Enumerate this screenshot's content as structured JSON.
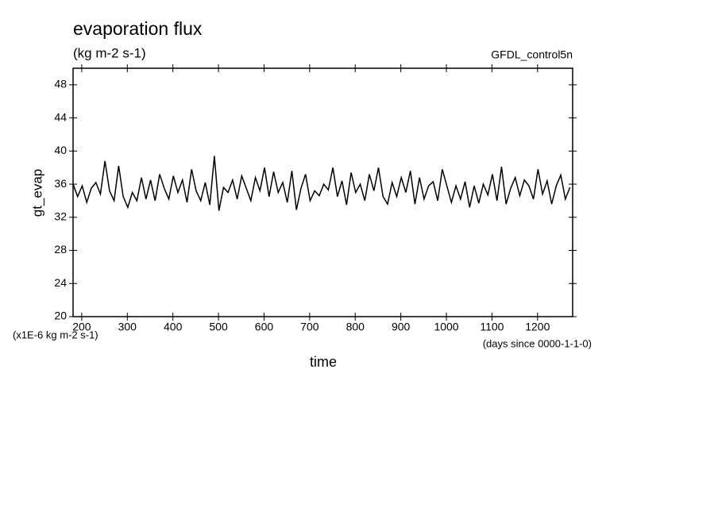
{
  "chart_data": {
    "type": "line",
    "title": "evaporation flux",
    "subtitle": "(kg m-2 s-1)",
    "dataset": "GFDL_control5n",
    "y_label": "gt_evap",
    "x_label": "time",
    "y_units": "(x1E-6 kg m-2 s-1)",
    "x_units": "(days since 0000-1-1-0)",
    "xlim": [
      181,
      1277
    ],
    "ylim": [
      20,
      50
    ],
    "xticks": [
      200,
      300,
      400,
      500,
      600,
      700,
      800,
      900,
      1000,
      1100,
      1200
    ],
    "yticks": [
      20,
      24,
      28,
      32,
      36,
      40,
      44,
      48
    ],
    "x": [
      181,
      191,
      201,
      211,
      221,
      231,
      241,
      251,
      261,
      271,
      281,
      291,
      301,
      311,
      321,
      331,
      341,
      351,
      361,
      371,
      381,
      391,
      401,
      411,
      421,
      431,
      441,
      451,
      461,
      471,
      481,
      491,
      501,
      511,
      521,
      531,
      541,
      551,
      561,
      571,
      581,
      591,
      601,
      611,
      621,
      631,
      641,
      651,
      661,
      671,
      681,
      691,
      701,
      711,
      721,
      731,
      741,
      751,
      761,
      771,
      781,
      791,
      801,
      811,
      821,
      831,
      841,
      851,
      861,
      871,
      881,
      891,
      901,
      911,
      921,
      931,
      941,
      951,
      961,
      971,
      981,
      991,
      1001,
      1011,
      1021,
      1031,
      1041,
      1051,
      1061,
      1071,
      1081,
      1091,
      1101,
      1111,
      1121,
      1131,
      1141,
      1151,
      1161,
      1171,
      1181,
      1191,
      1201,
      1211,
      1221,
      1231,
      1241,
      1251,
      1261,
      1271
    ],
    "series": [
      {
        "name": "gt_evap",
        "color": "#000000",
        "values": [
          36,
          34.5,
          35.8,
          33.8,
          35.5,
          36.2,
          34.8,
          38.8,
          35.2,
          34.0,
          38.2,
          34.5,
          33.2,
          35.0,
          34.0,
          36.8,
          34.2,
          36.5,
          34.0,
          37.2,
          35.5,
          34.2,
          37.0,
          35.0,
          36.5,
          33.8,
          37.8,
          35.2,
          34.0,
          36.2,
          33.5,
          39.4,
          32.8,
          35.6,
          35.0,
          36.5,
          34.2,
          37.0,
          35.5,
          34.0,
          36.8,
          35.2,
          38.0,
          34.5,
          37.5,
          35.0,
          36.2,
          33.8,
          37.6,
          32.9,
          35.5,
          37.2,
          34.0,
          35.2,
          34.6,
          36.0,
          35.3,
          38.0,
          34.5,
          36.4,
          33.5,
          37.4,
          35.0,
          36.0,
          34.0,
          37.2,
          35.2,
          38.0,
          34.5,
          33.6,
          36.2,
          34.5,
          36.8,
          35.0,
          37.6,
          33.6,
          36.8,
          34.2,
          35.8,
          36.3,
          34.0,
          37.8,
          35.8,
          33.8,
          35.8,
          34.2,
          36.3,
          33.2,
          35.8,
          33.7,
          36.0,
          34.7,
          37.2,
          34.0,
          38.1,
          33.6,
          35.5,
          36.8,
          34.6,
          36.5,
          35.8,
          34.2,
          37.8,
          34.8,
          36.4,
          33.6,
          35.8,
          37.1,
          34.2,
          35.6
        ]
      }
    ]
  }
}
